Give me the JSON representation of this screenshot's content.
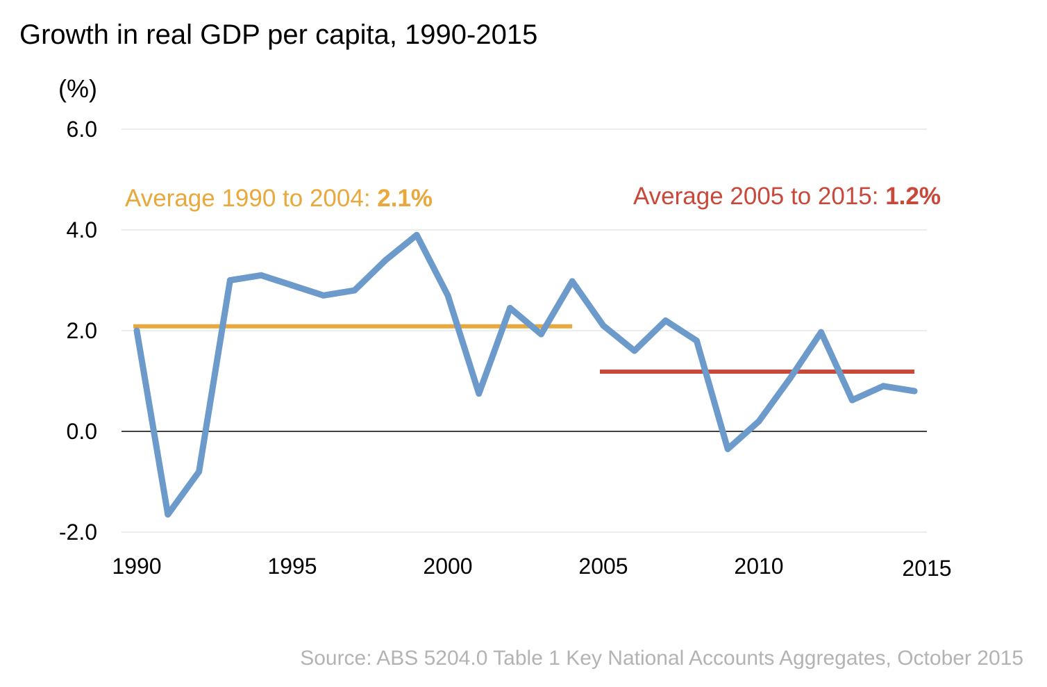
{
  "chart_data": {
    "type": "line",
    "title": "Growth in real GDP per capita, 1990-2015",
    "ylabel": "(%)",
    "xlabel": "",
    "ylim": [
      -2.0,
      6.0
    ],
    "xlim": [
      1990,
      2015
    ],
    "y_ticks": [
      "6.0",
      "4.0",
      "2.0",
      "0.0",
      "-2.0"
    ],
    "x_ticks": [
      "1990",
      "1995",
      "2000",
      "2005",
      "2010",
      "2015"
    ],
    "grid": true,
    "series": [
      {
        "color": "#6b9acb",
        "x": [
          1990,
          1991,
          1992,
          1993,
          1994,
          1995,
          1996,
          1997,
          1998,
          1999,
          2000,
          2001,
          2002,
          2003,
          2004,
          2005,
          2006,
          2007,
          2008,
          2009,
          2010,
          2011,
          2012,
          2013,
          2014,
          2015
        ],
        "values": [
          2.0,
          -1.65,
          -0.8,
          3.0,
          3.1,
          2.9,
          2.7,
          2.8,
          3.4,
          3.9,
          2.7,
          0.75,
          2.45,
          1.93,
          2.98,
          2.1,
          1.6,
          2.2,
          1.8,
          -0.35,
          0.2,
          1.05,
          1.97,
          0.62,
          0.9,
          0.8
        ]
      }
    ],
    "annotations": [
      {
        "label": "Average 1990 to 2004:",
        "value_text": "2.1%",
        "value": 2.1,
        "x_start": 1990,
        "x_end": 2004,
        "color": "#e9a83c"
      },
      {
        "label": "Average 2005 to 2015:",
        "value_text": "1.2%",
        "value": 1.2,
        "x_start": 2005,
        "x_end": 2015,
        "color": "#c8483a"
      }
    ],
    "source": "Source: ABS 5204.0 Table 1 Key National Accounts Aggregates, October 2015"
  }
}
